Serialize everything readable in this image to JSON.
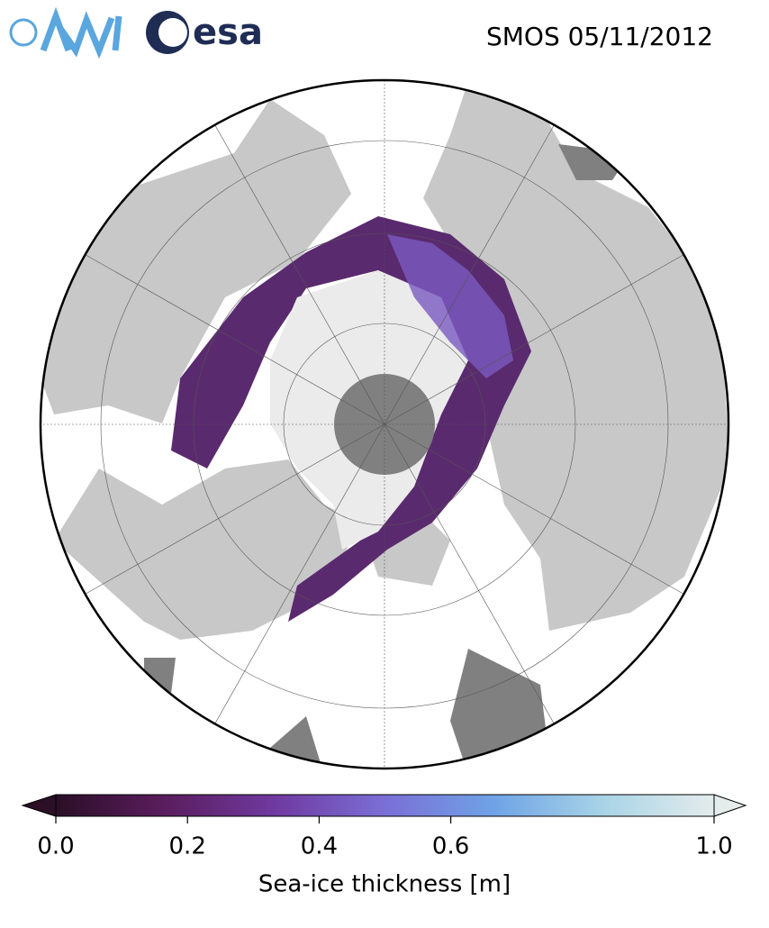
{
  "header": {
    "logos": [
      "esa"
    ],
    "title": "SMOS 05/11/2012"
  },
  "colorbar": {
    "label": "Sea-ice thickness [m]",
    "range": [
      0,
      1
    ],
    "ticks": [
      {
        "value": 0,
        "label": "0.0"
      },
      0.2,
      0.4,
      0.6,
      {
        "value": 1,
        "label": "1.0"
      }
    ],
    "colors": [
      "#2a0f26",
      "#5a1d5e",
      "#6f3aa0",
      "#7a6fd6",
      "#6fa3e6",
      "#a9d4e6",
      "#e4ecec"
    ]
  }
}
